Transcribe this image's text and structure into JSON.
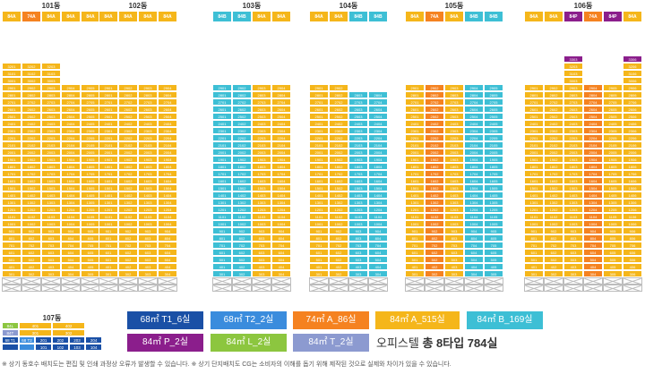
{
  "colors": {
    "T1_6": "#1a50a6",
    "T2_2": "#3a8cdd",
    "A86": "#f58220",
    "A515": "#f5b61a",
    "B169": "#3dbfd5",
    "P2": "#8b1e8c",
    "L2": "#8cc63f",
    "T_2": "#8c9ad0",
    "empty": "#ffffff"
  },
  "buildings": [
    {
      "name": "101동",
      "types": [
        {
          "label": "84A",
          "c": "A515"
        },
        {
          "label": "74A",
          "c": "A86"
        },
        {
          "label": "84A",
          "c": "A515"
        },
        {
          "label": "84A",
          "c": "A515"
        },
        {
          "label": "84A",
          "c": "A515"
        }
      ],
      "topFloor": 29,
      "partialTop": [
        30,
        31,
        32
      ],
      "partialCols": [
        0,
        1,
        2
      ],
      "colors": [
        "A515",
        "A515",
        "A515",
        "A515",
        "A515"
      ]
    },
    {
      "name": "102동",
      "types": [
        {
          "label": "84A",
          "c": "A515"
        },
        {
          "label": "84A",
          "c": "A515"
        },
        {
          "label": "84A",
          "c": "A515"
        },
        {
          "label": "84A",
          "c": "A515"
        }
      ],
      "topFloor": 29,
      "partialTop": [],
      "partialCols": [],
      "colors": [
        "A515",
        "A515",
        "A515",
        "A515"
      ]
    },
    {
      "name": "103동",
      "types": [
        {
          "label": "84B",
          "c": "B169"
        },
        {
          "label": "84B",
          "c": "B169"
        },
        {
          "label": "84A",
          "c": "A515"
        },
        {
          "label": "84A",
          "c": "A515"
        }
      ],
      "topFloor": 29,
      "partialTop": [],
      "partialCols": [],
      "colors": [
        "B169",
        "B169",
        "A515",
        "A515"
      ]
    },
    {
      "name": "104동",
      "types": [
        {
          "label": "84A",
          "c": "A515"
        },
        {
          "label": "84A",
          "c": "A515"
        },
        {
          "label": "84B",
          "c": "B169"
        },
        {
          "label": "84B",
          "c": "B169"
        }
      ],
      "topFloor": 28,
      "partialTop": [
        29
      ],
      "partialCols": [
        0,
        1
      ],
      "colors": [
        "A515",
        "A515",
        "B169",
        "B169"
      ]
    },
    {
      "name": "105동",
      "types": [
        {
          "label": "84A",
          "c": "A515"
        },
        {
          "label": "74A",
          "c": "A86"
        },
        {
          "label": "84A",
          "c": "A515"
        },
        {
          "label": "84B",
          "c": "B169"
        },
        {
          "label": "84B",
          "c": "B169"
        }
      ],
      "topFloor": 29,
      "partialTop": [],
      "partialCols": [],
      "colors": [
        "A515",
        "A86",
        "A515",
        "B169",
        "B169"
      ]
    },
    {
      "name": "106동",
      "types": [
        {
          "label": "84A",
          "c": "A515"
        },
        {
          "label": "84A",
          "c": "A515"
        },
        {
          "label": "84P",
          "c": "P2"
        },
        {
          "label": "74A",
          "c": "A86"
        },
        {
          "label": "84P",
          "c": "P2"
        },
        {
          "label": "84A",
          "c": "A515"
        }
      ],
      "topFloor": 29,
      "partialTop": [
        30,
        31,
        32,
        33
      ],
      "partialCols": [
        2,
        5
      ],
      "colors": [
        "A515",
        "A515",
        "A515",
        "A86",
        "A515",
        "A515"
      ]
    }
  ],
  "b107": {
    "name": "107동",
    "rows": [
      [
        {
          "t": "84L",
          "c": "L2",
          "w": 1
        },
        {
          "t": "401",
          "c": "A515",
          "w": 2
        },
        {
          "t": "402",
          "c": "A515",
          "w": 2
        }
      ],
      [
        {
          "t": "84T",
          "c": "T_2",
          "w": 1
        },
        {
          "t": "301",
          "c": "A515",
          "w": 2
        },
        {
          "t": "302",
          "c": "A515",
          "w": 2
        }
      ],
      [
        {
          "t": "68 T1",
          "c": "T1_6",
          "w": 1
        },
        {
          "t": "68 T2",
          "c": "T2_2",
          "w": 1
        },
        {
          "t": "201",
          "c": "T1_6",
          "w": 1
        },
        {
          "t": "202",
          "c": "T1_6",
          "w": 1
        },
        {
          "t": "203",
          "c": "T1_6",
          "w": 1
        },
        {
          "t": "204",
          "c": "T1_6",
          "w": 1
        }
      ],
      [
        {
          "t": "",
          "c": "T1_6",
          "w": 1
        },
        {
          "t": "",
          "c": "T2_2",
          "w": 1
        },
        {
          "t": "101",
          "c": "T1_6",
          "w": 1
        },
        {
          "t": "102",
          "c": "T1_6",
          "w": 1
        },
        {
          "t": "103",
          "c": "T1_6",
          "w": 1
        },
        {
          "t": "104",
          "c": "T1_6",
          "w": 1
        }
      ]
    ]
  },
  "legend": [
    {
      "label": "68㎡ T1_6실",
      "c": "T1_6"
    },
    {
      "label": "68㎡ T2_2실",
      "c": "T2_2"
    },
    {
      "label": "74㎡ A_86실",
      "c": "A86"
    },
    {
      "label": "84㎡ A_515실",
      "c": "A515"
    },
    {
      "label": "84㎡ B_169실",
      "c": "B169"
    },
    {
      "label": "84㎡ P_2실",
      "c": "P2"
    },
    {
      "label": "84㎡ L_2실",
      "c": "L2"
    },
    {
      "label": "84㎡ T_2실",
      "c": "T_2"
    }
  ],
  "total": {
    "prefix": "오피스텔",
    "strong": "총 8타입 784실"
  },
  "footnote": "※ 상기 동호수 배치도는 편집 및 인쇄 과정상 오류가 발생할 수 있습니다.    ※ 상기 단지배치도 CG는 소비자의 이해를 돕기 위해 제작된 것으로 실제와 차이가 있을 수 있습니다."
}
